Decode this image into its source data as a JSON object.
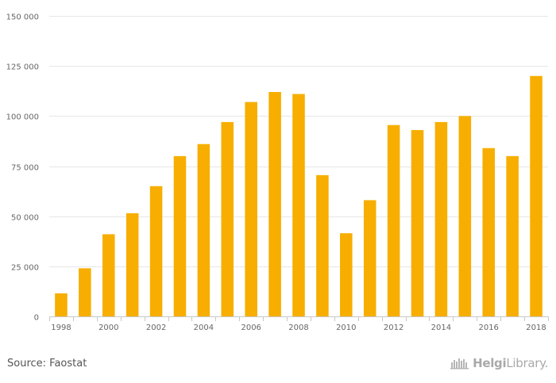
{
  "chart_data": {
    "type": "bar",
    "categories": [
      "1998",
      "1999",
      "2000",
      "2001",
      "2002",
      "2003",
      "2004",
      "2005",
      "2006",
      "2007",
      "2008",
      "2009",
      "2010",
      "2011",
      "2012",
      "2013",
      "2014",
      "2015",
      "2016",
      "2017",
      "2018"
    ],
    "values": [
      11500,
      24000,
      41000,
      51500,
      65000,
      80000,
      86000,
      97000,
      107000,
      112000,
      111000,
      70500,
      41500,
      58000,
      95500,
      93000,
      97000,
      100000,
      84000,
      80000,
      120000
    ],
    "x_tick_labels": [
      "1998",
      "2000",
      "2002",
      "2004",
      "2006",
      "2008",
      "2010",
      "2012",
      "2014",
      "2016",
      "2018"
    ],
    "y_ticks": [
      0,
      25000,
      50000,
      75000,
      100000,
      125000,
      150000
    ],
    "y_tick_labels": [
      "0",
      "25 000",
      "50 000",
      "75 000",
      "100 000",
      "125 000",
      "150 000"
    ],
    "ylim": [
      0,
      150000
    ],
    "title": "",
    "xlabel": "",
    "ylabel": "",
    "grid": true,
    "bar_color": "#f7ae00",
    "grid_color": "#e6e6e6"
  },
  "footer": {
    "source": "Source: Faostat",
    "brand_bold": "Helgi",
    "brand_rest": "Library."
  },
  "icons": {
    "brand": "helgi-library-logo-icon"
  }
}
